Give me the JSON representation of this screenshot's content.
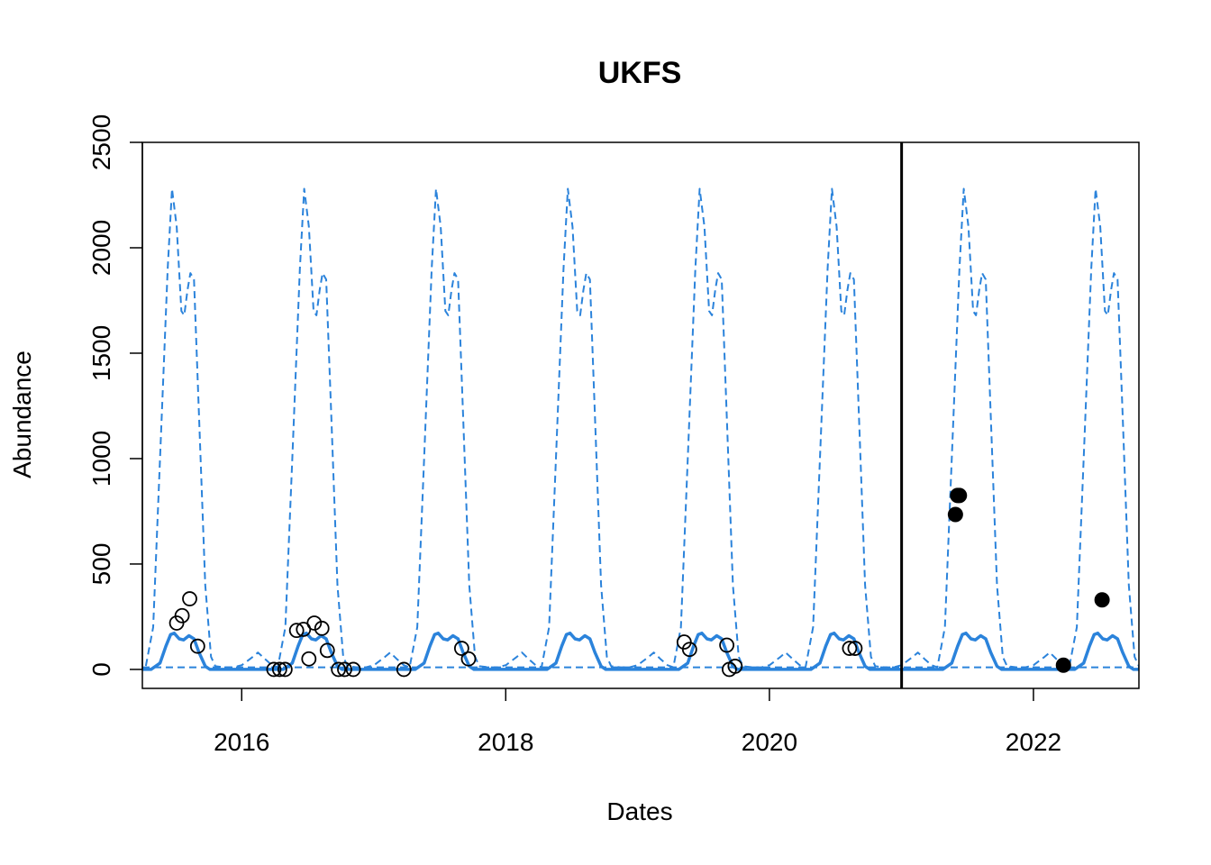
{
  "chart_data": {
    "type": "line",
    "title": "UKFS",
    "xlabel": "Dates",
    "ylabel": "Abundance",
    "xlim": [
      "2015-04-01",
      "2022-10-20"
    ],
    "ylim": [
      -90,
      2500
    ],
    "x_ticks": [
      {
        "date": "2016-01-01",
        "label": "2016"
      },
      {
        "date": "2018-01-01",
        "label": "2018"
      },
      {
        "date": "2020-01-01",
        "label": "2020"
      },
      {
        "date": "2022-01-01",
        "label": "2022"
      }
    ],
    "y_ticks": [
      0,
      500,
      1000,
      1500,
      2000,
      2500
    ],
    "vline": "2021-01-01",
    "years": [
      2015,
      2016,
      2017,
      2018,
      2019,
      2020,
      2021,
      2022
    ],
    "series": [
      {
        "style": "solid",
        "color": "#2B83DB",
        "seasonal_profile": [
          [
            "01-01",
            0
          ],
          [
            "04-25",
            0
          ],
          [
            "05-20",
            30
          ],
          [
            "06-05",
            110
          ],
          [
            "06-18",
            165
          ],
          [
            "06-28",
            172
          ],
          [
            "07-12",
            145
          ],
          [
            "07-24",
            140
          ],
          [
            "08-08",
            160
          ],
          [
            "08-22",
            145
          ],
          [
            "09-05",
            80
          ],
          [
            "09-22",
            15
          ],
          [
            "10-05",
            0
          ],
          [
            "12-31",
            0
          ]
        ]
      },
      {
        "style": "dashed",
        "color": "#2B83DB",
        "seasonal_profile": [
          [
            "01-01",
            20
          ],
          [
            "02-01",
            60
          ],
          [
            "02-15",
            80
          ],
          [
            "03-05",
            50
          ],
          [
            "03-25",
            20
          ],
          [
            "04-10",
            10
          ],
          [
            "05-01",
            200
          ],
          [
            "05-20",
            1000
          ],
          [
            "06-10",
            1900
          ],
          [
            "06-22",
            2280
          ],
          [
            "07-05",
            2100
          ],
          [
            "07-18",
            1700
          ],
          [
            "07-26",
            1680
          ],
          [
            "08-04",
            1800
          ],
          [
            "08-12",
            1880
          ],
          [
            "08-22",
            1850
          ],
          [
            "09-05",
            1200
          ],
          [
            "09-22",
            400
          ],
          [
            "10-08",
            60
          ],
          [
            "10-20",
            15
          ],
          [
            "11-15",
            10
          ],
          [
            "12-10",
            10
          ],
          [
            "12-31",
            20
          ]
        ]
      },
      {
        "style": "dashed",
        "color": "#2B83DB",
        "constant": 10
      }
    ],
    "points_open": [
      {
        "x": "2015-07-05",
        "y": 220
      },
      {
        "x": "2015-07-20",
        "y": 255
      },
      {
        "x": "2015-08-10",
        "y": 335
      },
      {
        "x": "2015-09-01",
        "y": 110
      },
      {
        "x": "2016-03-30",
        "y": 0
      },
      {
        "x": "2016-04-15",
        "y": 0
      },
      {
        "x": "2016-04-30",
        "y": 0
      },
      {
        "x": "2016-06-01",
        "y": 185
      },
      {
        "x": "2016-06-20",
        "y": 190
      },
      {
        "x": "2016-07-05",
        "y": 50
      },
      {
        "x": "2016-07-20",
        "y": 220
      },
      {
        "x": "2016-08-10",
        "y": 195
      },
      {
        "x": "2016-08-25",
        "y": 90
      },
      {
        "x": "2016-09-25",
        "y": 0
      },
      {
        "x": "2016-10-12",
        "y": 0
      },
      {
        "x": "2016-11-05",
        "y": 0
      },
      {
        "x": "2017-03-25",
        "y": 0
      },
      {
        "x": "2017-09-01",
        "y": 100
      },
      {
        "x": "2017-09-20",
        "y": 50
      },
      {
        "x": "2019-05-10",
        "y": 130
      },
      {
        "x": "2019-05-25",
        "y": 95
      },
      {
        "x": "2019-09-05",
        "y": 115
      },
      {
        "x": "2019-09-12",
        "y": 0
      },
      {
        "x": "2019-09-28",
        "y": 15
      },
      {
        "x": "2020-08-10",
        "y": 100
      },
      {
        "x": "2020-08-25",
        "y": 100
      }
    ],
    "points_filled": [
      {
        "x": "2021-05-30",
        "y": 735
      },
      {
        "x": "2021-06-05",
        "y": 825
      },
      {
        "x": "2021-06-10",
        "y": 825
      },
      {
        "x": "2022-03-25",
        "y": 20
      },
      {
        "x": "2022-07-10",
        "y": 330
      }
    ]
  }
}
